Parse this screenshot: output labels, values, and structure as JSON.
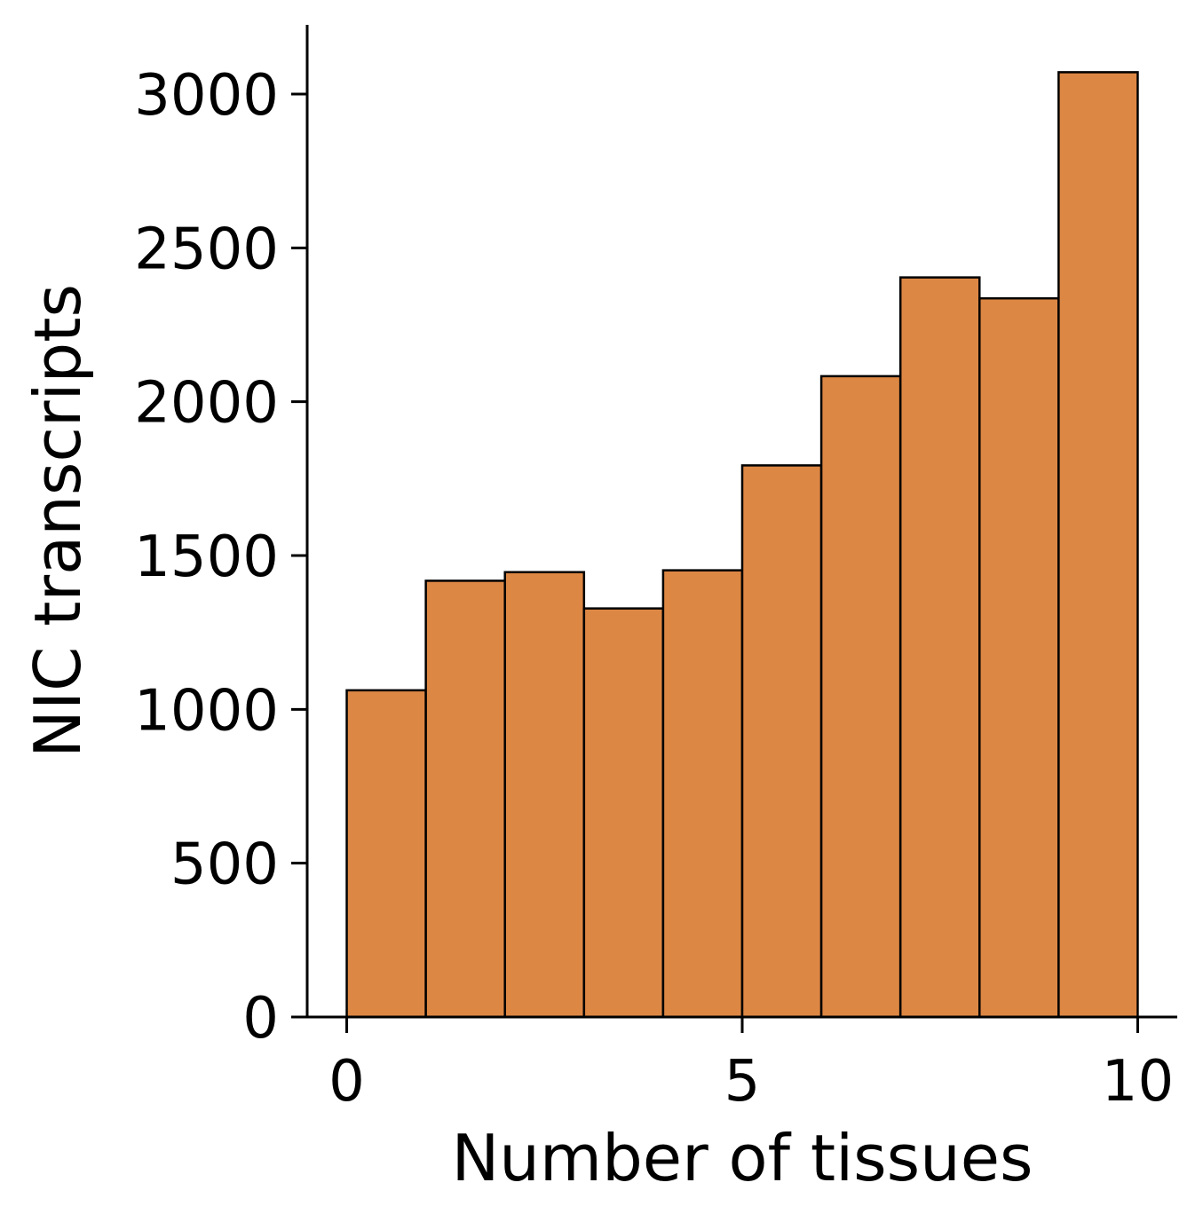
{
  "chart_data": {
    "type": "bar",
    "title": "",
    "xlabel": "Number of tissues",
    "ylabel": "NIC transcripts",
    "bin_edges": [
      0,
      1,
      2,
      3,
      4,
      5,
      6,
      7,
      8,
      9,
      10
    ],
    "values": [
      1062,
      1418,
      1446,
      1328,
      1452,
      1793,
      2083,
      2404,
      2336,
      3071
    ],
    "xlim": [
      -0.5,
      10.5
    ],
    "ylim": [
      0,
      3225
    ],
    "xticks": [
      0,
      5,
      10
    ],
    "xtick_labels": [
      "0",
      "5",
      "10"
    ],
    "yticks": [
      0,
      500,
      1000,
      1500,
      2000,
      2500,
      3000
    ],
    "ytick_labels": [
      "0",
      "500",
      "1000",
      "1500",
      "2000",
      "2500",
      "3000"
    ],
    "bar_color": "#dd8744",
    "edge_color": "#000000",
    "grid": false,
    "legend": "none"
  }
}
